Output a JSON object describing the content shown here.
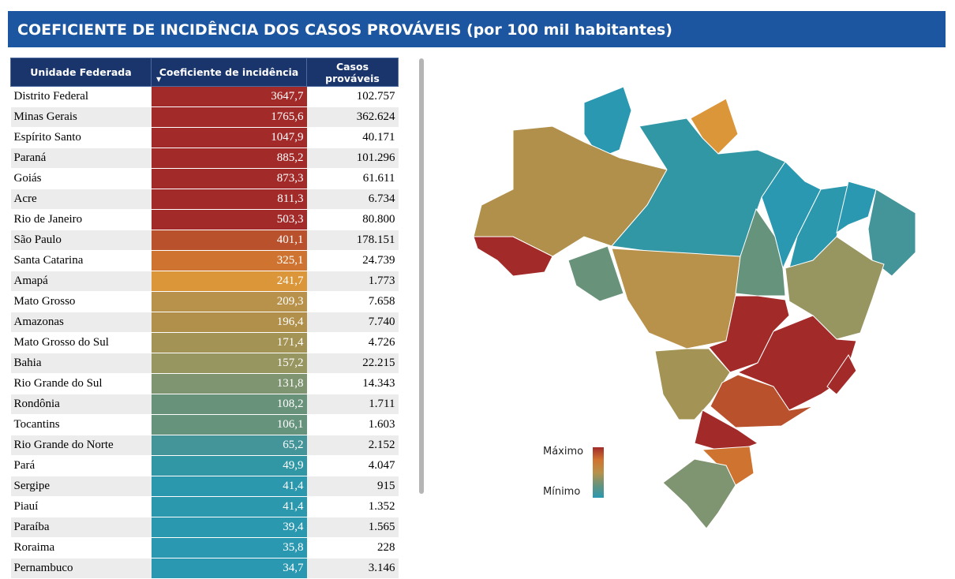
{
  "title": "COEFICIENTE DE INCIDÊNCIA DOS CASOS PROVÁVEIS (por 100 mil habitantes)",
  "table": {
    "headers": [
      "Unidade Federada",
      "Coeficiente de incidência",
      "Casos prováveis"
    ],
    "sort_icon": "sort-descending-icon",
    "rows": [
      {
        "uf": "Distrito Federal",
        "coef": "3647,7",
        "casos": "102.757",
        "color": "#a22b2a"
      },
      {
        "uf": "Minas Gerais",
        "coef": "1765,6",
        "casos": "362.624",
        "color": "#a22b2a"
      },
      {
        "uf": "Espírito Santo",
        "coef": "1047,9",
        "casos": "40.171",
        "color": "#a22b2a"
      },
      {
        "uf": "Paraná",
        "coef": "885,2",
        "casos": "101.296",
        "color": "#a22b2a"
      },
      {
        "uf": "Goiás",
        "coef": "873,3",
        "casos": "61.611",
        "color": "#a22b2a"
      },
      {
        "uf": "Acre",
        "coef": "811,3",
        "casos": "6.734",
        "color": "#a22b2a"
      },
      {
        "uf": "Rio de Janeiro",
        "coef": "503,3",
        "casos": "80.800",
        "color": "#a22b2a"
      },
      {
        "uf": "São Paulo",
        "coef": "401,1",
        "casos": "178.151",
        "color": "#b9522c"
      },
      {
        "uf": "Santa Catarina",
        "coef": "325,1",
        "casos": "24.739",
        "color": "#cf7430"
      },
      {
        "uf": "Amapá",
        "coef": "241,7",
        "casos": "1.773",
        "color": "#dc963a"
      },
      {
        "uf": "Mato Grosso",
        "coef": "209,3",
        "casos": "7.658",
        "color": "#b8914a"
      },
      {
        "uf": "Amazonas",
        "coef": "196,4",
        "casos": "7.740",
        "color": "#b0904b"
      },
      {
        "uf": "Mato Grosso do Sul",
        "coef": "171,4",
        "casos": "4.726",
        "color": "#a39355"
      },
      {
        "uf": "Bahia",
        "coef": "157,2",
        "casos": "22.215",
        "color": "#979560"
      },
      {
        "uf": "Rio Grande do Sul",
        "coef": "131,8",
        "casos": "14.343",
        "color": "#7f9470"
      },
      {
        "uf": "Rondônia",
        "coef": "108,2",
        "casos": "1.711",
        "color": "#68937a"
      },
      {
        "uf": "Tocantins",
        "coef": "106,1",
        "casos": "1.603",
        "color": "#66937c"
      },
      {
        "uf": "Rio Grande do Norte",
        "coef": "65,2",
        "casos": "2.152",
        "color": "#43959a"
      },
      {
        "uf": "Pará",
        "coef": "49,9",
        "casos": "4.047",
        "color": "#3197a5"
      },
      {
        "uf": "Sergipe",
        "coef": "41,4",
        "casos": "915",
        "color": "#2b98ad"
      },
      {
        "uf": "Piauí",
        "coef": "41,4",
        "casos": "1.352",
        "color": "#2b98ad"
      },
      {
        "uf": "Paraíba",
        "coef": "39,4",
        "casos": "1.565",
        "color": "#2a98af"
      },
      {
        "uf": "Roraima",
        "coef": "35,8",
        "casos": "228",
        "color": "#2a98b1"
      },
      {
        "uf": "Pernambuco",
        "coef": "34,7",
        "casos": "3.146",
        "color": "#2a98b1"
      }
    ]
  },
  "legend": {
    "max": "Máximo",
    "min": "Mínimo",
    "colors": [
      "#a22b2a",
      "#cf7430",
      "#b8914a",
      "#66937c",
      "#2a98b1"
    ]
  }
}
